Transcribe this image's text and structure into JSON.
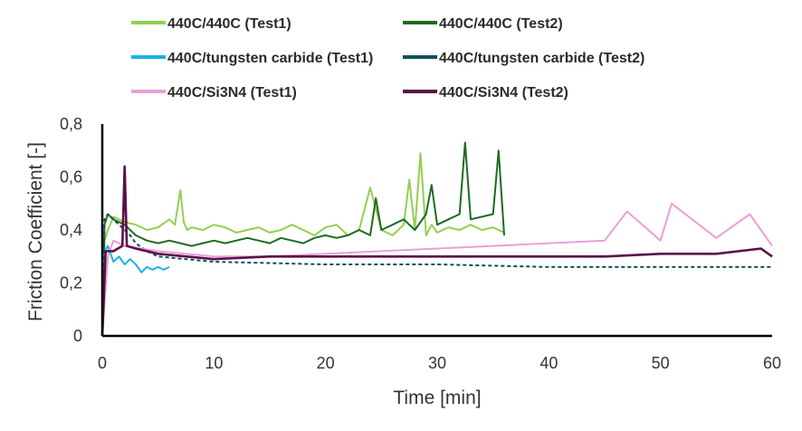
{
  "chart_data": {
    "type": "line",
    "title": "",
    "xlabel": "Time [min]",
    "ylabel": "Friction Coefficient [-]",
    "xlim": [
      0,
      60
    ],
    "ylim": [
      0,
      0.8
    ],
    "x_ticks": [
      0,
      10,
      20,
      30,
      40,
      50,
      60
    ],
    "x_tick_labels": [
      "0",
      "10",
      "20",
      "30",
      "40",
      "50",
      "60"
    ],
    "y_ticks": [
      0,
      0.2,
      0.4,
      0.6,
      0.8
    ],
    "y_tick_labels": [
      "0",
      "0,2",
      "0,4",
      "0,6",
      "0,8"
    ],
    "grid": false,
    "legend_position": "top",
    "series": [
      {
        "name": "440C/440C (Test1)",
        "color": "#92d050",
        "x": [
          0,
          0.2,
          0.5,
          1,
          2,
          3,
          4,
          5,
          6,
          6.5,
          7,
          7.3,
          7.6,
          8,
          9,
          10,
          11,
          12,
          13,
          14,
          15,
          16,
          17,
          18,
          19,
          20,
          21,
          22,
          23,
          24,
          25,
          26,
          27,
          27.5,
          28,
          28.5,
          29,
          29.5,
          30,
          31,
          32,
          33,
          34,
          35,
          35.5,
          36
        ],
        "y": [
          0.0,
          0.36,
          0.4,
          0.45,
          0.43,
          0.42,
          0.4,
          0.41,
          0.44,
          0.42,
          0.55,
          0.43,
          0.4,
          0.41,
          0.4,
          0.42,
          0.41,
          0.39,
          0.4,
          0.41,
          0.39,
          0.4,
          0.42,
          0.4,
          0.38,
          0.41,
          0.42,
          0.38,
          0.4,
          0.56,
          0.4,
          0.38,
          0.42,
          0.59,
          0.4,
          0.69,
          0.38,
          0.42,
          0.39,
          0.41,
          0.4,
          0.42,
          0.4,
          0.41,
          0.4,
          0.39
        ]
      },
      {
        "name": "440C/440C (Test2)",
        "color": "#1e6b22",
        "x": [
          0,
          0.2,
          0.5,
          1,
          2,
          3,
          4,
          5,
          6,
          7,
          8,
          9,
          10,
          11,
          12,
          13,
          14,
          15,
          16,
          17,
          18,
          19,
          20,
          21,
          22,
          23,
          24,
          24.5,
          25,
          26,
          27,
          28,
          29,
          29.5,
          30,
          31,
          32,
          32.5,
          33,
          34,
          35,
          35.5,
          36
        ],
        "y": [
          0.0,
          0.42,
          0.46,
          0.44,
          0.42,
          0.38,
          0.36,
          0.35,
          0.36,
          0.35,
          0.34,
          0.35,
          0.36,
          0.35,
          0.36,
          0.37,
          0.36,
          0.35,
          0.37,
          0.36,
          0.35,
          0.37,
          0.38,
          0.37,
          0.38,
          0.4,
          0.38,
          0.52,
          0.4,
          0.42,
          0.44,
          0.4,
          0.46,
          0.57,
          0.42,
          0.44,
          0.46,
          0.73,
          0.44,
          0.45,
          0.46,
          0.7,
          0.38
        ]
      },
      {
        "name": "440C/tungsten carbide (Test1)",
        "color": "#1ab2e8",
        "x": [
          0,
          0.2,
          0.5,
          1,
          1.5,
          2,
          2.5,
          3,
          3.5,
          4,
          4.5,
          5,
          5.5,
          6
        ],
        "y": [
          0.0,
          0.32,
          0.34,
          0.28,
          0.3,
          0.27,
          0.29,
          0.27,
          0.24,
          0.26,
          0.25,
          0.26,
          0.25,
          0.26
        ]
      },
      {
        "name": "440C/tungsten carbide (Test2)",
        "color": "#0f4f5e",
        "x": [
          0,
          0.2,
          0.5,
          1,
          1.5,
          2,
          2.5,
          3,
          4,
          5,
          10,
          20,
          30,
          40,
          50,
          60
        ],
        "y": [
          0.0,
          0.44,
          0.46,
          0.44,
          0.42,
          0.4,
          0.38,
          0.35,
          0.32,
          0.3,
          0.28,
          0.27,
          0.27,
          0.26,
          0.26,
          0.26
        ]
      },
      {
        "name": "440C/Si3N4 (Test1)",
        "color": "#e8a0d8",
        "x": [
          0,
          0.5,
          1,
          2,
          5,
          10,
          15,
          20,
          25,
          30,
          35,
          40,
          45,
          47,
          50,
          51,
          55,
          58,
          60
        ],
        "y": [
          0.0,
          0.3,
          0.36,
          0.34,
          0.32,
          0.3,
          0.3,
          0.31,
          0.32,
          0.33,
          0.34,
          0.35,
          0.36,
          0.47,
          0.36,
          0.5,
          0.37,
          0.46,
          0.34
        ]
      },
      {
        "name": "440C/Si3N4 (Test2)",
        "color": "#5a1048",
        "x": [
          0,
          0.3,
          1,
          1.8,
          2,
          2.2,
          3,
          5,
          10,
          15,
          20,
          25,
          30,
          35,
          40,
          45,
          50,
          55,
          59,
          60
        ],
        "y": [
          0.0,
          0.32,
          0.32,
          0.34,
          0.64,
          0.34,
          0.33,
          0.31,
          0.29,
          0.3,
          0.3,
          0.3,
          0.3,
          0.3,
          0.3,
          0.3,
          0.31,
          0.31,
          0.33,
          0.3
        ]
      }
    ]
  }
}
